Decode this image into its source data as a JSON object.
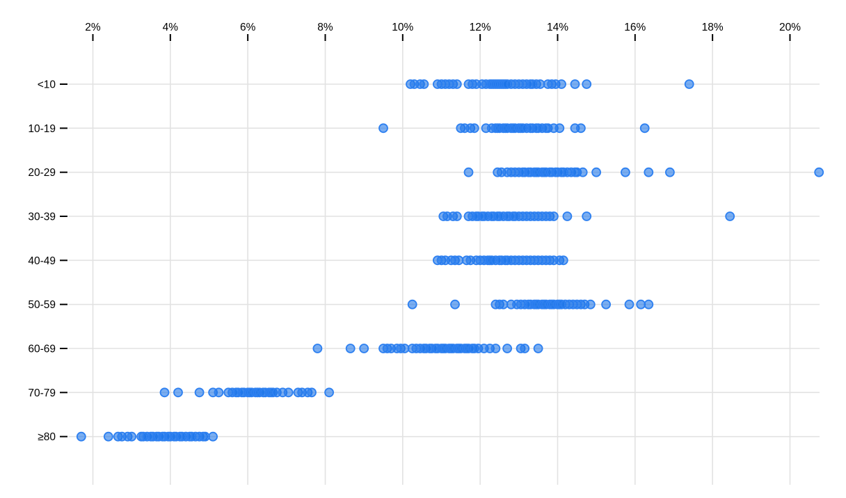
{
  "chart_data": {
    "type": "scatter",
    "variant": "strip-plot",
    "title": "",
    "x_axis": {
      "position": "top",
      "tick_values": [
        2,
        4,
        6,
        8,
        10,
        12,
        14,
        16,
        18,
        20
      ],
      "tick_labels": [
        "2%",
        "4%",
        "6%",
        "8%",
        "10%",
        "12%",
        "14%",
        "16%",
        "18%",
        "20%"
      ],
      "unit": "%",
      "range": [
        1.35,
        21.3
      ],
      "grid": true
    },
    "y_axis": {
      "categories": [
        "<10",
        "10-19",
        "20-29",
        "30-39",
        "40-49",
        "50-59",
        "60-69",
        "70-79",
        "≥80"
      ],
      "grid": true
    },
    "series": [
      {
        "category": "<10",
        "values": [
          10.2,
          10.3,
          10.45,
          10.55,
          10.9,
          11.0,
          11.1,
          11.2,
          11.3,
          11.4,
          11.7,
          11.8,
          11.9,
          12.05,
          12.15,
          12.25,
          12.3,
          12.35,
          12.4,
          12.45,
          12.5,
          12.55,
          12.6,
          12.65,
          12.7,
          12.8,
          12.9,
          13.0,
          13.1,
          13.2,
          13.3,
          13.35,
          13.45,
          13.55,
          13.75,
          13.85,
          13.95,
          14.1,
          14.45,
          14.75,
          17.4
        ]
      },
      {
        "category": "10-19",
        "values": [
          9.5,
          11.5,
          11.6,
          11.75,
          11.85,
          12.15,
          12.3,
          12.4,
          12.45,
          12.5,
          12.6,
          12.65,
          12.7,
          12.8,
          12.85,
          12.9,
          13.0,
          13.05,
          13.1,
          13.2,
          13.3,
          13.35,
          13.45,
          13.5,
          13.6,
          13.7,
          13.75,
          13.9,
          14.05,
          14.45,
          14.6,
          16.25
        ]
      },
      {
        "category": "20-29",
        "values": [
          11.7,
          12.45,
          12.55,
          12.7,
          12.8,
          12.9,
          13.0,
          13.1,
          13.15,
          13.25,
          13.3,
          13.4,
          13.45,
          13.5,
          13.6,
          13.65,
          13.7,
          13.8,
          13.85,
          13.95,
          14.0,
          14.1,
          14.15,
          14.25,
          14.35,
          14.45,
          14.5,
          14.65,
          15.0,
          15.75,
          16.35,
          16.9,
          20.75
        ]
      },
      {
        "category": "30-39",
        "values": [
          11.05,
          11.15,
          11.3,
          11.4,
          11.7,
          11.8,
          11.9,
          11.95,
          12.05,
          12.1,
          12.2,
          12.3,
          12.35,
          12.45,
          12.5,
          12.6,
          12.7,
          12.75,
          12.85,
          12.9,
          13.0,
          13.1,
          13.2,
          13.3,
          13.4,
          13.5,
          13.6,
          13.7,
          13.8,
          13.9,
          14.25,
          14.75,
          18.45
        ]
      },
      {
        "category": "40-49",
        "values": [
          10.9,
          11.0,
          11.1,
          11.25,
          11.35,
          11.45,
          11.65,
          11.75,
          11.9,
          12.0,
          12.1,
          12.2,
          12.25,
          12.3,
          12.4,
          12.5,
          12.55,
          12.65,
          12.7,
          12.8,
          12.9,
          13.0,
          13.1,
          13.2,
          13.3,
          13.4,
          13.5,
          13.6,
          13.7,
          13.8,
          13.9,
          14.05,
          14.15
        ]
      },
      {
        "category": "50-59",
        "values": [
          10.25,
          11.35,
          12.4,
          12.5,
          12.6,
          12.8,
          12.95,
          13.05,
          13.15,
          13.25,
          13.3,
          13.4,
          13.45,
          13.5,
          13.6,
          13.65,
          13.7,
          13.8,
          13.85,
          13.9,
          14.0,
          14.05,
          14.1,
          14.2,
          14.3,
          14.4,
          14.5,
          14.6,
          14.7,
          14.85,
          15.25,
          15.85,
          16.15,
          16.35
        ]
      },
      {
        "category": "60-69",
        "values": [
          7.8,
          8.65,
          9.0,
          9.5,
          9.6,
          9.7,
          9.85,
          9.95,
          10.05,
          10.25,
          10.35,
          10.45,
          10.55,
          10.6,
          10.7,
          10.75,
          10.85,
          10.9,
          11.0,
          11.05,
          11.1,
          11.2,
          11.25,
          11.3,
          11.4,
          11.45,
          11.5,
          11.6,
          11.65,
          11.7,
          11.8,
          11.85,
          11.95,
          12.1,
          12.25,
          12.4,
          12.7,
          13.05,
          13.15,
          13.5
        ]
      },
      {
        "category": "70-79",
        "values": [
          3.85,
          4.2,
          4.75,
          5.1,
          5.25,
          5.5,
          5.6,
          5.7,
          5.75,
          5.85,
          5.9,
          6.0,
          6.05,
          6.1,
          6.2,
          6.25,
          6.3,
          6.4,
          6.45,
          6.55,
          6.6,
          6.65,
          6.75,
          6.9,
          7.05,
          7.3,
          7.4,
          7.55,
          7.65,
          8.1
        ]
      },
      {
        "category": "≥80",
        "values": [
          1.7,
          2.4,
          2.65,
          2.75,
          2.9,
          3.0,
          3.25,
          3.3,
          3.4,
          3.5,
          3.55,
          3.65,
          3.7,
          3.8,
          3.85,
          3.95,
          4.0,
          4.1,
          4.15,
          4.25,
          4.3,
          4.4,
          4.5,
          4.55,
          4.65,
          4.75,
          4.85,
          4.9,
          5.1
        ]
      }
    ],
    "legend": null,
    "colors": {
      "point_stroke": "#2e80f0",
      "point_fill": "#1a73e8",
      "point_fill_opacity": 0.58,
      "gridline": "#e2e2e2",
      "axis_tick": "#000000",
      "axis_label": "#000000",
      "background": "#ffffff"
    }
  }
}
